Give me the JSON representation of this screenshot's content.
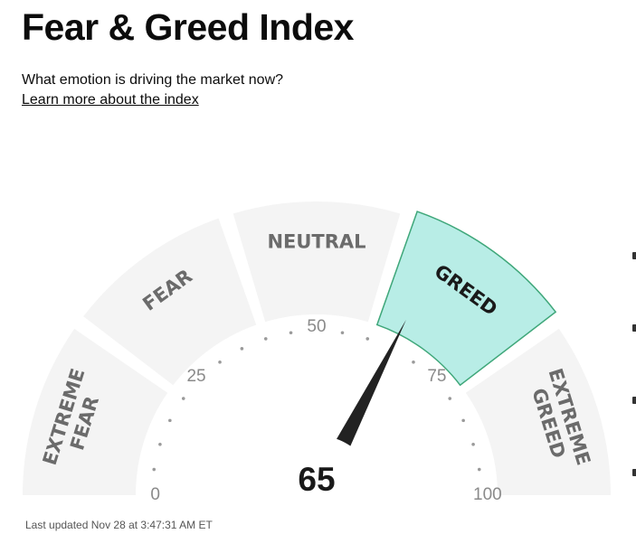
{
  "header": {
    "title": "Fear & Greed Index",
    "subtitle": "What emotion is driving the market now?",
    "learn_more": "Learn more about the index"
  },
  "gauge": {
    "score": 65,
    "score_label": "65",
    "active_segment": "greed",
    "segments": [
      {
        "id": "extreme-fear",
        "lines": [
          "EXTREME",
          "FEAR"
        ]
      },
      {
        "id": "fear",
        "lines": [
          "FEAR"
        ]
      },
      {
        "id": "neutral",
        "lines": [
          "NEUTRAL"
        ]
      },
      {
        "id": "greed",
        "lines": [
          "GREED"
        ]
      },
      {
        "id": "extreme-greed",
        "lines": [
          "EXTREME",
          "GREED"
        ]
      }
    ],
    "ticks": [
      "0",
      "25",
      "50",
      "75",
      "100"
    ],
    "colors": {
      "segment": "#f4f4f4",
      "active_fill": "#b8ede6",
      "active_stroke": "#3fa77a",
      "needle": "#222222",
      "dots": "#9a9a9a"
    }
  },
  "footer": {
    "last_updated": "Last updated Nov 28 at 3:47:31 AM ET"
  }
}
